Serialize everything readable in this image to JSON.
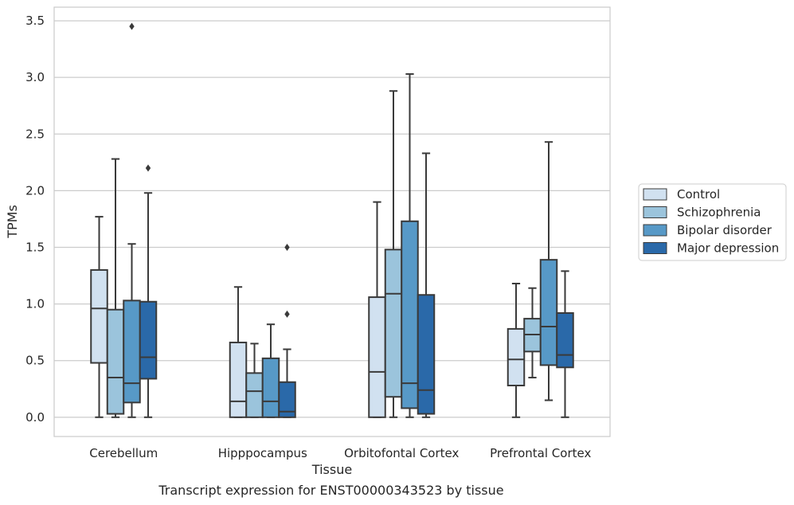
{
  "caption": "Transcript expression for ENST00000343523 by tissue",
  "chart_data": {
    "type": "box",
    "title": "",
    "xlabel": "Tissue",
    "ylabel": "TPMs",
    "ylim": [
      -0.17,
      3.62
    ],
    "yticks": [
      "0.0",
      "0.5",
      "1.0",
      "1.5",
      "2.0",
      "2.5",
      "3.0",
      "3.5"
    ],
    "categories": [
      "Cerebellum",
      "Hipppocampus",
      "Orbitofontal Cortex",
      "Prefrontal Cortex"
    ],
    "grid": "horizontal",
    "legend_position": "right",
    "series": [
      {
        "name": "Control",
        "color": "#d1e1f0",
        "boxes": [
          {
            "whislo": 0.0,
            "q1": 0.48,
            "med": 0.96,
            "q3": 1.3,
            "whishi": 1.77,
            "fliers": []
          },
          {
            "whislo": 0.0,
            "q1": 0.0,
            "med": 0.14,
            "q3": 0.66,
            "whishi": 1.15,
            "fliers": []
          },
          {
            "whislo": 0.0,
            "q1": 0.0,
            "med": 0.4,
            "q3": 1.06,
            "whishi": 1.9,
            "fliers": []
          },
          {
            "whislo": 0.0,
            "q1": 0.28,
            "med": 0.51,
            "q3": 0.78,
            "whishi": 1.18,
            "fliers": []
          }
        ]
      },
      {
        "name": "Schizophrenia",
        "color": "#9bc4dc",
        "boxes": [
          {
            "whislo": 0.0,
            "q1": 0.03,
            "med": 0.35,
            "q3": 0.95,
            "whishi": 2.28,
            "fliers": []
          },
          {
            "whislo": 0.0,
            "q1": 0.0,
            "med": 0.23,
            "q3": 0.39,
            "whishi": 0.65,
            "fliers": []
          },
          {
            "whislo": 0.0,
            "q1": 0.18,
            "med": 1.09,
            "q3": 1.48,
            "whishi": 2.88,
            "fliers": []
          },
          {
            "whislo": 0.35,
            "q1": 0.58,
            "med": 0.73,
            "q3": 0.87,
            "whishi": 1.14,
            "fliers": []
          }
        ]
      },
      {
        "name": "Bipolar disorder",
        "color": "#5799c7",
        "boxes": [
          {
            "whislo": 0.0,
            "q1": 0.13,
            "med": 0.3,
            "q3": 1.03,
            "whishi": 1.53,
            "fliers": [
              3.45
            ]
          },
          {
            "whislo": 0.0,
            "q1": 0.0,
            "med": 0.14,
            "q3": 0.52,
            "whishi": 0.82,
            "fliers": []
          },
          {
            "whislo": 0.0,
            "q1": 0.08,
            "med": 0.3,
            "q3": 1.73,
            "whishi": 3.03,
            "fliers": []
          },
          {
            "whislo": 0.15,
            "q1": 0.46,
            "med": 0.8,
            "q3": 1.39,
            "whishi": 2.43,
            "fliers": []
          }
        ]
      },
      {
        "name": "Major depression",
        "color": "#2a69a9",
        "boxes": [
          {
            "whislo": 0.0,
            "q1": 0.34,
            "med": 0.53,
            "q3": 1.02,
            "whishi": 1.98,
            "fliers": [
              2.2
            ]
          },
          {
            "whislo": 0.0,
            "q1": 0.0,
            "med": 0.05,
            "q3": 0.31,
            "whishi": 0.6,
            "fliers": [
              1.5,
              0.91
            ]
          },
          {
            "whislo": 0.0,
            "q1": 0.03,
            "med": 0.24,
            "q3": 1.08,
            "whishi": 2.33,
            "fliers": []
          },
          {
            "whislo": 0.0,
            "q1": 0.44,
            "med": 0.55,
            "q3": 0.92,
            "whishi": 1.29,
            "fliers": []
          }
        ]
      }
    ]
  }
}
